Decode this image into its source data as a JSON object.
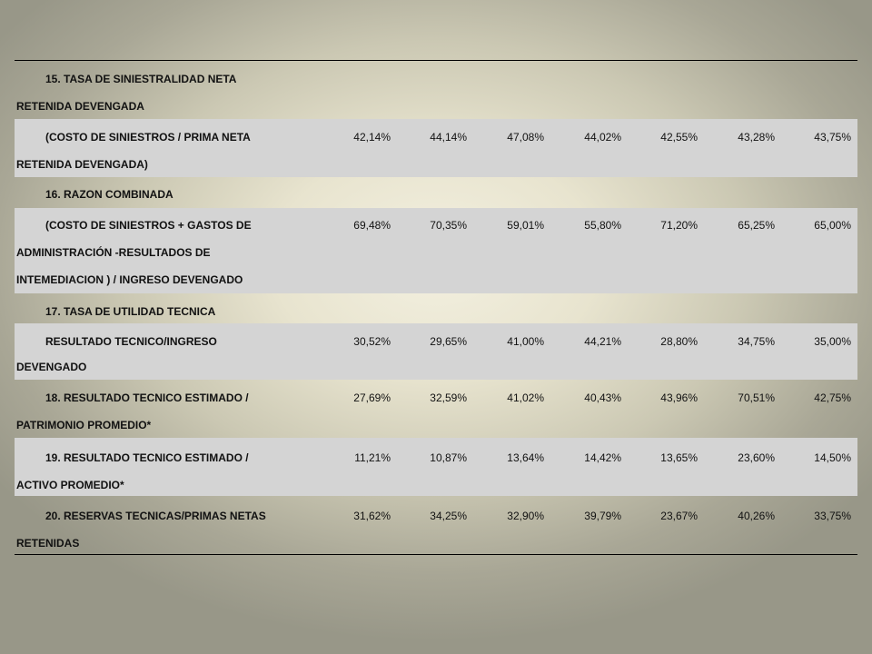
{
  "table": {
    "rows": [
      {
        "lines": [
          "15. TASA DE SINIESTRALIDAD NETA",
          "RETENIDA DEVENGADA"
        ],
        "values": [],
        "shaded": false
      },
      {
        "lines": [
          "(COSTO DE SINIESTROS / PRIMA NETA",
          "RETENIDA DEVENGADA)"
        ],
        "values": [
          "42,14%",
          "44,14%",
          "47,08%",
          "44,02%",
          "42,55%",
          "43,28%",
          "43,75%"
        ],
        "shaded": true
      },
      {
        "lines": [
          "16. RAZON COMBINADA"
        ],
        "values": [],
        "shaded": false
      },
      {
        "lines": [
          "(COSTO DE SINIESTROS + GASTOS DE",
          "ADMINISTRACIÓN -RESULTADOS DE",
          "INTEMEDIACION ) / INGRESO DEVENGADO"
        ],
        "values": [
          "69,48%",
          "70,35%",
          "59,01%",
          "55,80%",
          "71,20%",
          "65,25%",
          "65,00%"
        ],
        "shaded": true
      },
      {
        "lines": [
          "17. TASA DE UTILIDAD TECNICA"
        ],
        "values": [],
        "shaded": false
      },
      {
        "lines": [
          "RESULTADO TECNICO/INGRESO",
          "DEVENGADO"
        ],
        "values": [
          "30,52%",
          "29,65%",
          "41,00%",
          "44,21%",
          "28,80%",
          "34,75%",
          "35,00%"
        ],
        "shaded": true
      },
      {
        "lines": [
          "18. RESULTADO TECNICO ESTIMADO /",
          "PATRIMONIO PROMEDIO*"
        ],
        "values": [
          "27,69%",
          "32,59%",
          "41,02%",
          "40,43%",
          "43,96%",
          "70,51%",
          "42,75%"
        ],
        "shaded": false
      },
      {
        "lines": [
          "19. RESULTADO TECNICO ESTIMADO /",
          "ACTIVO PROMEDIO*"
        ],
        "values": [
          "11,21%",
          "10,87%",
          "13,64%",
          "14,42%",
          "13,65%",
          "23,60%",
          "14,50%"
        ],
        "shaded": true
      },
      {
        "lines": [
          "20. RESERVAS TECNICAS/PRIMAS NETAS",
          "RETENIDAS"
        ],
        "values": [
          "31,62%",
          "34,25%",
          "32,90%",
          "39,79%",
          "23,67%",
          "40,26%",
          "33,75%"
        ],
        "shaded": false
      }
    ]
  }
}
